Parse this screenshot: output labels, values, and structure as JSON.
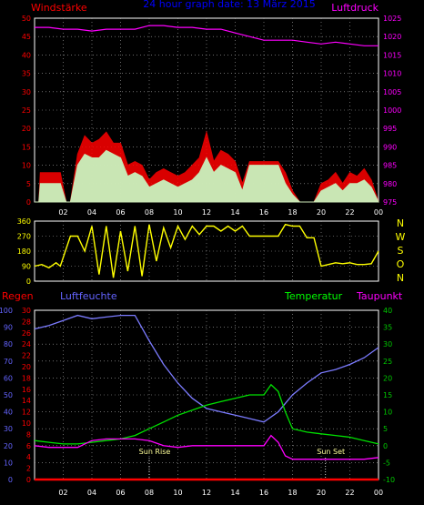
{
  "chart_data": [
    {
      "type": "line",
      "title": "24 hour graph date: 13 März 2015",
      "left_axis_label": "Windstärke",
      "right_axis_label": "Luftdruck",
      "x_ticks": [
        "02",
        "04",
        "06",
        "08",
        "10",
        "12",
        "14",
        "16",
        "18",
        "20",
        "22",
        "00"
      ],
      "y_left": {
        "min": 0,
        "max": 50,
        "ticks": [
          0,
          5,
          10,
          15,
          20,
          25,
          30,
          35,
          40,
          45,
          50
        ]
      },
      "y_right": {
        "min": 975,
        "max": 1025,
        "ticks": [
          975,
          980,
          985,
          990,
          995,
          1000,
          1005,
          1010,
          1015,
          1020,
          1025
        ]
      },
      "grid": true,
      "colors": {
        "wind_gust": "#ff0000",
        "wind_avg": "#c8ffc8",
        "pressure": "#ff00ff",
        "axis_left": "#ff0000",
        "axis_right": "#ff00ff",
        "title": "#0000ff"
      },
      "series": [
        {
          "key": "pressure",
          "x_hours": [
            0,
            1,
            2,
            3,
            4,
            5,
            6,
            7,
            8,
            9,
            10,
            11,
            12,
            13,
            14,
            15,
            16,
            17,
            18,
            19,
            20,
            21,
            22,
            23,
            24
          ],
          "values": [
            1022.5,
            1022.5,
            1022,
            1022,
            1021.5,
            1022,
            1022,
            1022,
            1023,
            1023,
            1022.5,
            1022.5,
            1022,
            1022,
            1021,
            1020,
            1019,
            1019,
            1019,
            1018.5,
            1018,
            1018.5,
            1018,
            1017.5,
            1017.5
          ]
        },
        {
          "key": "wind_avg",
          "x_hours": [
            0,
            0.3,
            0.4,
            1.8,
            2.2,
            2.5,
            3,
            3.5,
            4,
            4.5,
            5,
            5.5,
            6,
            6.5,
            7,
            7.5,
            8,
            8.5,
            9,
            9.5,
            10,
            10.5,
            11,
            11.5,
            12,
            12.5,
            13,
            13.5,
            14,
            14.5,
            15,
            16,
            17,
            17.5,
            18,
            18.5,
            19,
            19.5,
            20,
            20.5,
            21,
            21.5,
            22,
            22.5,
            23,
            23.5,
            24
          ],
          "values": [
            0,
            0,
            5,
            5,
            0,
            0,
            10,
            13,
            12,
            12,
            14,
            13,
            12,
            7,
            8,
            7,
            4,
            5,
            6,
            5,
            4,
            5,
            6,
            8,
            12,
            8,
            10,
            9,
            8,
            3,
            10,
            10,
            10,
            5,
            2,
            0,
            0,
            0,
            3,
            4,
            5,
            3,
            5,
            5,
            6,
            4,
            0
          ]
        },
        {
          "key": "wind_gust",
          "x_hours": [
            0,
            0.3,
            0.4,
            1.8,
            2.2,
            2.5,
            3,
            3.5,
            4,
            4.5,
            5,
            5.5,
            6,
            6.5,
            7,
            7.5,
            8,
            8.5,
            9,
            9.5,
            10,
            10.5,
            11,
            11.5,
            12,
            12.5,
            13,
            13.5,
            14,
            14.5,
            15,
            16,
            17,
            17.5,
            18,
            18.5,
            19,
            19.5,
            20,
            20.5,
            21,
            21.5,
            22,
            22.5,
            23,
            23.5,
            24
          ],
          "values": [
            0,
            0,
            8,
            8,
            0,
            0,
            13,
            18,
            16,
            17,
            19,
            16,
            16,
            10,
            11,
            10,
            6,
            8,
            9,
            8,
            7,
            8,
            10,
            12,
            19,
            11,
            14,
            13,
            11,
            5,
            11,
            11,
            11,
            8,
            3,
            0,
            0,
            0,
            5,
            6,
            8,
            5,
            8,
            7,
            9,
            6,
            0
          ]
        }
      ]
    },
    {
      "type": "scatter",
      "side_labels": [
        "N",
        "W",
        "S",
        "O",
        "N"
      ],
      "y": {
        "min": 0,
        "max": 360,
        "ticks": [
          0,
          90,
          180,
          270,
          360
        ]
      },
      "colors": {
        "direction": "#ffff00",
        "label": "#ffff00"
      },
      "series": [
        {
          "key": "wind_direction",
          "x_hours": [
            0,
            0.5,
            1,
            1.5,
            1.8,
            2.5,
            3,
            3.5,
            4,
            4.5,
            5,
            5.5,
            6,
            6.5,
            7,
            7.5,
            8,
            8.5,
            9,
            9.5,
            10,
            10.5,
            11,
            11.5,
            12,
            12.5,
            13,
            13.5,
            14,
            14.5,
            15,
            16,
            17,
            17.5,
            18,
            18.5,
            19,
            19.5,
            20,
            20.5,
            21,
            21.5,
            22,
            22.5,
            23,
            23.5,
            24
          ],
          "values": [
            90,
            100,
            80,
            110,
            90,
            270,
            270,
            180,
            330,
            40,
            330,
            20,
            300,
            60,
            330,
            30,
            340,
            120,
            320,
            200,
            330,
            250,
            330,
            280,
            330,
            330,
            300,
            330,
            300,
            330,
            270,
            270,
            270,
            340,
            330,
            330,
            260,
            260,
            90,
            100,
            110,
            105,
            110,
            100,
            100,
            105,
            180
          ]
        }
      ]
    },
    {
      "type": "line",
      "left_labels": [
        "Regen",
        "Luftfeuchte"
      ],
      "right_labels": [
        "Temperatur",
        "Taupunkt"
      ],
      "y_hum": {
        "min": 0,
        "max": 100,
        "ticks": [
          0,
          10,
          20,
          30,
          40,
          50,
          60,
          70,
          80,
          90,
          100
        ]
      },
      "y_rain": {
        "min": 0,
        "max": 30,
        "ticks": [
          0,
          2,
          4,
          6,
          8,
          10,
          12,
          14,
          16,
          18,
          20,
          22,
          24,
          26,
          28,
          30
        ]
      },
      "y_temp": {
        "min": -10,
        "max": 40,
        "ticks": [
          -10,
          -5,
          0,
          5,
          10,
          15,
          20,
          25,
          30,
          35,
          40
        ]
      },
      "annotations": [
        {
          "label": "Sun Rise",
          "x_hour": 8.0
        },
        {
          "label": "Sun Set",
          "x_hour": 20.3
        }
      ],
      "colors": {
        "humidity": "#7b7bff",
        "temperature": "#00e000",
        "dewpoint": "#ff00ff",
        "rain": "#ff0000",
        "regen_label": "#ff0000",
        "hum_label": "#6464ff",
        "temp_label": "#00ff00",
        "dew_label": "#ff00ff",
        "temp_axis": "#00c800",
        "hum_axis": "#6464ff",
        "rain_axis": "#ff0000"
      },
      "series": [
        {
          "key": "humidity",
          "x_hours": [
            0,
            1,
            2,
            3,
            4,
            5,
            6,
            7,
            8,
            9,
            10,
            11,
            12,
            13,
            14,
            15,
            16,
            17,
            18,
            19,
            20,
            21,
            22,
            23,
            24
          ],
          "values": [
            89,
            91,
            94,
            97,
            95,
            96,
            97,
            97,
            82,
            68,
            57,
            48,
            42,
            40,
            38,
            36,
            34,
            40,
            50,
            57,
            63,
            65,
            68,
            72,
            78
          ]
        },
        {
          "key": "temperature",
          "x_hours": [
            0,
            1,
            2,
            3,
            4,
            5,
            6,
            7,
            8,
            9,
            10,
            11,
            12,
            13,
            14,
            15,
            16,
            16.5,
            17,
            17.5,
            18,
            19,
            20,
            21,
            22,
            23,
            24
          ],
          "values": [
            1.5,
            1,
            0.5,
            0.5,
            1,
            1.5,
            2,
            3,
            5,
            7,
            9,
            10.5,
            12,
            13,
            14,
            15,
            15,
            18,
            16,
            10,
            5,
            4,
            3.5,
            3,
            2.5,
            1.5,
            0.5
          ]
        },
        {
          "key": "dewpoint",
          "x_hours": [
            0,
            1,
            2,
            3,
            4,
            5,
            6,
            7,
            8,
            9,
            10,
            11,
            12,
            13,
            14,
            15,
            16,
            16.5,
            17,
            17.5,
            18,
            19,
            20,
            21,
            22,
            23,
            24
          ],
          "values": [
            0,
            -0.5,
            -0.5,
            -0.5,
            1.5,
            2,
            2,
            2,
            1.5,
            0,
            -0.5,
            0,
            0,
            0,
            0,
            0,
            0,
            3,
            1,
            -3,
            -4,
            -4,
            -4,
            -4,
            -4,
            -4,
            -3.5
          ]
        },
        {
          "key": "rain",
          "x_hours": [
            0,
            24
          ],
          "values": [
            0,
            0
          ]
        }
      ]
    }
  ]
}
